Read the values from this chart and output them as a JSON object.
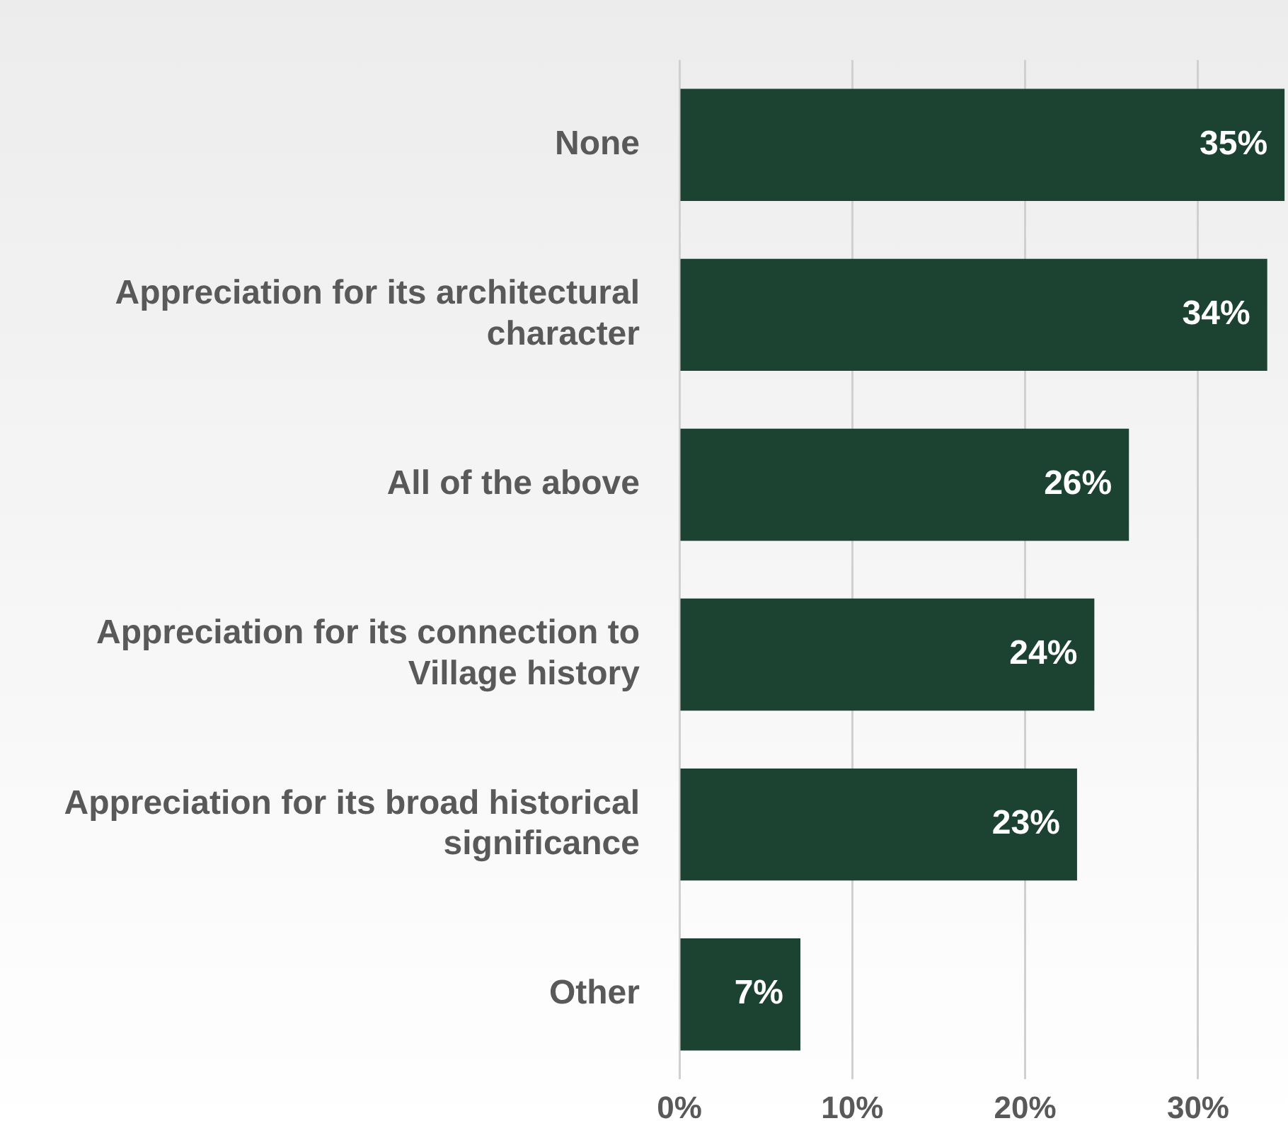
{
  "chart_data": {
    "type": "bar",
    "orientation": "horizontal",
    "categories": [
      "None",
      "Appreciation for its architectural character",
      "All of the above",
      "Appreciation for its connection to Village history",
      "Appreciation for its broad historical significance",
      "Other"
    ],
    "values": [
      35,
      34,
      26,
      24,
      23,
      7
    ],
    "value_labels": [
      "35%",
      "34%",
      "26%",
      "24%",
      "23%",
      "7%"
    ],
    "color": "#1c4332",
    "xlim": [
      0,
      35.2
    ],
    "xticks": [
      {
        "value": 0,
        "label": "0%"
      },
      {
        "value": 10,
        "label": "10%"
      },
      {
        "value": 20,
        "label": "20%"
      },
      {
        "value": 30,
        "label": "30%"
      }
    ],
    "grid": "x",
    "legend": false
  }
}
